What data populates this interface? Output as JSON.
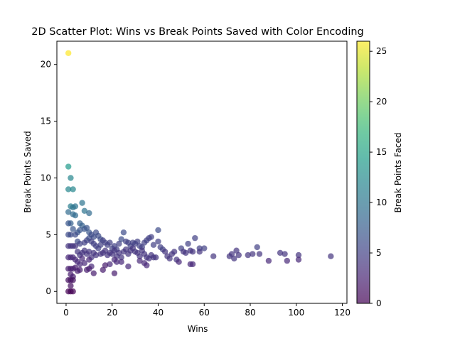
{
  "chart_data": {
    "type": "scatter",
    "title": "2D Scatter Plot: Wins vs Break Points Saved with Color Encoding",
    "xlabel": "Wins",
    "ylabel": "Break Points Saved",
    "xlim": [
      -4,
      122
    ],
    "ylim": [
      -1.05,
      22.05
    ],
    "xticks": [
      0,
      20,
      40,
      60,
      80,
      100,
      120
    ],
    "yticks": [
      0,
      5,
      10,
      15,
      20
    ],
    "grid": false,
    "legend": "none",
    "colorbar": {
      "label": "Break Points Faced",
      "range": [
        0,
        26
      ],
      "ticks": [
        0,
        5,
        10,
        15,
        20,
        25
      ],
      "colormap": "viridis",
      "alpha": 0.7
    },
    "points": [
      {
        "x": 1,
        "y": 21,
        "c": 26
      },
      {
        "x": 1,
        "y": 11,
        "c": 14
      },
      {
        "x": 1,
        "y": 9,
        "c": 12
      },
      {
        "x": 2,
        "y": 10,
        "c": 12
      },
      {
        "x": 3,
        "y": 9,
        "c": 12
      },
      {
        "x": 2,
        "y": 7.5,
        "c": 11
      },
      {
        "x": 3,
        "y": 7.4,
        "c": 10
      },
      {
        "x": 4,
        "y": 7.5,
        "c": 10
      },
      {
        "x": 1,
        "y": 7,
        "c": 9
      },
      {
        "x": 3,
        "y": 6.8,
        "c": 9
      },
      {
        "x": 4,
        "y": 6.7,
        "c": 9
      },
      {
        "x": 2,
        "y": 6,
        "c": 8
      },
      {
        "x": 1,
        "y": 6,
        "c": 7
      },
      {
        "x": 7,
        "y": 7.8,
        "c": 10
      },
      {
        "x": 8,
        "y": 7.1,
        "c": 10
      },
      {
        "x": 10,
        "y": 6.9,
        "c": 9
      },
      {
        "x": 6,
        "y": 6,
        "c": 8
      },
      {
        "x": 7,
        "y": 5.8,
        "c": 8
      },
      {
        "x": 8,
        "y": 5.5,
        "c": 7
      },
      {
        "x": 9,
        "y": 5.6,
        "c": 7
      },
      {
        "x": 5,
        "y": 5.2,
        "c": 7
      },
      {
        "x": 6,
        "y": 5.4,
        "c": 7
      },
      {
        "x": 3,
        "y": 5.5,
        "c": 7
      },
      {
        "x": 2,
        "y": 5,
        "c": 6
      },
      {
        "x": 1,
        "y": 5,
        "c": 6
      },
      {
        "x": 4,
        "y": 5,
        "c": 6
      },
      {
        "x": 10,
        "y": 5.2,
        "c": 7
      },
      {
        "x": 11,
        "y": 5,
        "c": 6
      },
      {
        "x": 12,
        "y": 4.8,
        "c": 6
      },
      {
        "x": 13,
        "y": 5.2,
        "c": 6
      },
      {
        "x": 14,
        "y": 4.9,
        "c": 6
      },
      {
        "x": 15,
        "y": 4.6,
        "c": 6
      },
      {
        "x": 16,
        "y": 4.5,
        "c": 5
      },
      {
        "x": 17,
        "y": 4.3,
        "c": 5
      },
      {
        "x": 5,
        "y": 4.4,
        "c": 6
      },
      {
        "x": 6,
        "y": 4.2,
        "c": 5
      },
      {
        "x": 8,
        "y": 4.3,
        "c": 5
      },
      {
        "x": 9,
        "y": 4.5,
        "c": 5
      },
      {
        "x": 10,
        "y": 4.7,
        "c": 6
      },
      {
        "x": 11,
        "y": 4.4,
        "c": 5
      },
      {
        "x": 12,
        "y": 4.2,
        "c": 5
      },
      {
        "x": 1,
        "y": 4,
        "c": 4
      },
      {
        "x": 2,
        "y": 4,
        "c": 4
      },
      {
        "x": 3,
        "y": 4,
        "c": 4
      },
      {
        "x": 4,
        "y": 4,
        "c": 4
      },
      {
        "x": 13,
        "y": 4,
        "c": 5
      },
      {
        "x": 14,
        "y": 3.8,
        "c": 5
      },
      {
        "x": 15,
        "y": 4.1,
        "c": 5
      },
      {
        "x": 18,
        "y": 4.1,
        "c": 5
      },
      {
        "x": 19,
        "y": 4.3,
        "c": 5
      },
      {
        "x": 20,
        "y": 3.8,
        "c": 5
      },
      {
        "x": 21,
        "y": 4.0,
        "c": 5
      },
      {
        "x": 22,
        "y": 3.7,
        "c": 5
      },
      {
        "x": 23,
        "y": 4.2,
        "c": 5
      },
      {
        "x": 24,
        "y": 4.6,
        "c": 6
      },
      {
        "x": 25,
        "y": 5.2,
        "c": 6
      },
      {
        "x": 26,
        "y": 4.4,
        "c": 5
      },
      {
        "x": 27,
        "y": 4.3,
        "c": 5
      },
      {
        "x": 28,
        "y": 4.0,
        "c": 5
      },
      {
        "x": 29,
        "y": 4.3,
        "c": 5
      },
      {
        "x": 30,
        "y": 4.2,
        "c": 5
      },
      {
        "x": 31,
        "y": 4.4,
        "c": 5
      },
      {
        "x": 32,
        "y": 4.0,
        "c": 5
      },
      {
        "x": 33,
        "y": 3.9,
        "c": 5
      },
      {
        "x": 34,
        "y": 4.3,
        "c": 5
      },
      {
        "x": 35,
        "y": 4.5,
        "c": 5
      },
      {
        "x": 36,
        "y": 4.7,
        "c": 5
      },
      {
        "x": 37,
        "y": 4.8,
        "c": 5
      },
      {
        "x": 38,
        "y": 4.1,
        "c": 5
      },
      {
        "x": 40,
        "y": 5.4,
        "c": 6
      },
      {
        "x": 40,
        "y": 4.4,
        "c": 5
      },
      {
        "x": 41,
        "y": 3.9,
        "c": 5
      },
      {
        "x": 42,
        "y": 3.7,
        "c": 5
      },
      {
        "x": 5,
        "y": 3.5,
        "c": 4
      },
      {
        "x": 6,
        "y": 3.2,
        "c": 4
      },
      {
        "x": 7,
        "y": 3.4,
        "c": 4
      },
      {
        "x": 8,
        "y": 3.6,
        "c": 4
      },
      {
        "x": 9,
        "y": 3.3,
        "c": 4
      },
      {
        "x": 10,
        "y": 3.5,
        "c": 4
      },
      {
        "x": 11,
        "y": 3.0,
        "c": 4
      },
      {
        "x": 12,
        "y": 3.4,
        "c": 4
      },
      {
        "x": 13,
        "y": 3.2,
        "c": 4
      },
      {
        "x": 15,
        "y": 3.3,
        "c": 4
      },
      {
        "x": 16,
        "y": 3.4,
        "c": 4
      },
      {
        "x": 17,
        "y": 3.6,
        "c": 4
      },
      {
        "x": 18,
        "y": 3.2,
        "c": 4
      },
      {
        "x": 19,
        "y": 3.4,
        "c": 4
      },
      {
        "x": 20,
        "y": 3.3,
        "c": 4
      },
      {
        "x": 21,
        "y": 3.6,
        "c": 4
      },
      {
        "x": 22,
        "y": 3.1,
        "c": 4
      },
      {
        "x": 23,
        "y": 3.4,
        "c": 4
      },
      {
        "x": 24,
        "y": 3.0,
        "c": 4
      },
      {
        "x": 25,
        "y": 3.5,
        "c": 4
      },
      {
        "x": 26,
        "y": 3.7,
        "c": 4
      },
      {
        "x": 27,
        "y": 3.3,
        "c": 4
      },
      {
        "x": 28,
        "y": 3.6,
        "c": 4
      },
      {
        "x": 29,
        "y": 3.8,
        "c": 4
      },
      {
        "x": 30,
        "y": 3.5,
        "c": 4
      },
      {
        "x": 31,
        "y": 3.4,
        "c": 4
      },
      {
        "x": 32,
        "y": 3.1,
        "c": 4
      },
      {
        "x": 33,
        "y": 3.6,
        "c": 4
      },
      {
        "x": 34,
        "y": 3.3,
        "c": 4
      },
      {
        "x": 35,
        "y": 3.0,
        "c": 4
      },
      {
        "x": 36,
        "y": 2.9,
        "c": 4
      },
      {
        "x": 37,
        "y": 3.2,
        "c": 4
      },
      {
        "x": 38,
        "y": 3.0,
        "c": 4
      },
      {
        "x": 39,
        "y": 3.0,
        "c": 4
      },
      {
        "x": 43,
        "y": 3.5,
        "c": 4
      },
      {
        "x": 44,
        "y": 3.1,
        "c": 4
      },
      {
        "x": 45,
        "y": 2.9,
        "c": 4
      },
      {
        "x": 46,
        "y": 3.3,
        "c": 4
      },
      {
        "x": 47,
        "y": 3.5,
        "c": 4
      },
      {
        "x": 48,
        "y": 2.8,
        "c": 4
      },
      {
        "x": 50,
        "y": 3.8,
        "c": 5
      },
      {
        "x": 51,
        "y": 3.5,
        "c": 4
      },
      {
        "x": 52,
        "y": 3.4,
        "c": 4
      },
      {
        "x": 53,
        "y": 4.2,
        "c": 5
      },
      {
        "x": 54,
        "y": 3.6,
        "c": 4
      },
      {
        "x": 55,
        "y": 3.5,
        "c": 4
      },
      {
        "x": 56,
        "y": 4.7,
        "c": 5
      },
      {
        "x": 58,
        "y": 3.8,
        "c": 5
      },
      {
        "x": 58,
        "y": 3.5,
        "c": 4
      },
      {
        "x": 60,
        "y": 3.8,
        "c": 5
      },
      {
        "x": 64,
        "y": 3.1,
        "c": 4
      },
      {
        "x": 71,
        "y": 3.1,
        "c": 4
      },
      {
        "x": 72,
        "y": 3.3,
        "c": 4
      },
      {
        "x": 73,
        "y": 2.9,
        "c": 4
      },
      {
        "x": 74,
        "y": 3.6,
        "c": 4
      },
      {
        "x": 75,
        "y": 3.2,
        "c": 4
      },
      {
        "x": 79,
        "y": 3.2,
        "c": 4
      },
      {
        "x": 81,
        "y": 3.3,
        "c": 4
      },
      {
        "x": 83,
        "y": 3.9,
        "c": 5
      },
      {
        "x": 84,
        "y": 3.3,
        "c": 4
      },
      {
        "x": 88,
        "y": 2.7,
        "c": 3
      },
      {
        "x": 93,
        "y": 3.4,
        "c": 4
      },
      {
        "x": 95,
        "y": 3.3,
        "c": 4
      },
      {
        "x": 96,
        "y": 2.7,
        "c": 3
      },
      {
        "x": 101,
        "y": 3.2,
        "c": 4
      },
      {
        "x": 101,
        "y": 2.8,
        "c": 3
      },
      {
        "x": 115,
        "y": 3.1,
        "c": 4
      },
      {
        "x": 1,
        "y": 3,
        "c": 3
      },
      {
        "x": 2,
        "y": 3,
        "c": 3
      },
      {
        "x": 3,
        "y": 3,
        "c": 3
      },
      {
        "x": 4,
        "y": 2.8,
        "c": 3
      },
      {
        "x": 5,
        "y": 2.6,
        "c": 3
      },
      {
        "x": 6,
        "y": 2.4,
        "c": 3
      },
      {
        "x": 7,
        "y": 2.9,
        "c": 3
      },
      {
        "x": 8,
        "y": 2.5,
        "c": 3
      },
      {
        "x": 10,
        "y": 2.8,
        "c": 3
      },
      {
        "x": 11,
        "y": 2.2,
        "c": 3
      },
      {
        "x": 19,
        "y": 2.4,
        "c": 3
      },
      {
        "x": 21,
        "y": 2.8,
        "c": 3
      },
      {
        "x": 22,
        "y": 2.6,
        "c": 3
      },
      {
        "x": 24,
        "y": 2.6,
        "c": 3
      },
      {
        "x": 27,
        "y": 2.2,
        "c": 3
      },
      {
        "x": 32,
        "y": 2.7,
        "c": 3
      },
      {
        "x": 34,
        "y": 2.5,
        "c": 3
      },
      {
        "x": 35,
        "y": 2.3,
        "c": 3
      },
      {
        "x": 49,
        "y": 2.6,
        "c": 3
      },
      {
        "x": 54,
        "y": 2.4,
        "c": 3
      },
      {
        "x": 55,
        "y": 2.4,
        "c": 3
      },
      {
        "x": 1,
        "y": 2,
        "c": 2
      },
      {
        "x": 2,
        "y": 2,
        "c": 2
      },
      {
        "x": 3,
        "y": 2,
        "c": 2
      },
      {
        "x": 4,
        "y": 2.1,
        "c": 2
      },
      {
        "x": 5,
        "y": 1.8,
        "c": 2
      },
      {
        "x": 6,
        "y": 1.9,
        "c": 2
      },
      {
        "x": 9,
        "y": 1.9,
        "c": 2
      },
      {
        "x": 10,
        "y": 2.0,
        "c": 2
      },
      {
        "x": 12,
        "y": 1.6,
        "c": 2
      },
      {
        "x": 16,
        "y": 1.9,
        "c": 2
      },
      {
        "x": 17,
        "y": 2.3,
        "c": 2
      },
      {
        "x": 21,
        "y": 1.6,
        "c": 2
      },
      {
        "x": 2,
        "y": 1.5,
        "c": 2
      },
      {
        "x": 3,
        "y": 1.3,
        "c": 2
      },
      {
        "x": 1,
        "y": 1,
        "c": 1
      },
      {
        "x": 2,
        "y": 1,
        "c": 1
      },
      {
        "x": 3,
        "y": 1,
        "c": 1
      },
      {
        "x": 2,
        "y": 0.5,
        "c": 1
      },
      {
        "x": 1,
        "y": 0,
        "c": 0
      },
      {
        "x": 2,
        "y": 0,
        "c": 0
      },
      {
        "x": 3,
        "y": 0,
        "c": 0
      }
    ]
  }
}
